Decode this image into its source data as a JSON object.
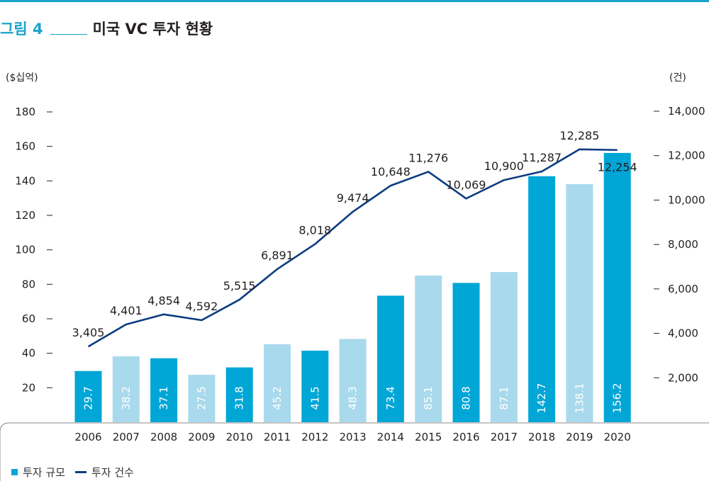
{
  "figure": {
    "label": "그림 4",
    "title": "미국 VC 투자 현황"
  },
  "legend": {
    "bar_label": "투자 규모",
    "line_label": "투자 건수"
  },
  "colors": {
    "accent": "#1aa3cc",
    "bar_dark": "#00a6d6",
    "bar_light": "#a9d9ec",
    "line": "#0a3c80",
    "text": "#231f20"
  },
  "chart_data": {
    "type": "bar",
    "categories": [
      "2006",
      "2007",
      "2008",
      "2009",
      "2010",
      "2011",
      "2012",
      "2013",
      "2014",
      "2015",
      "2016",
      "2017",
      "2018",
      "2019",
      "2020"
    ],
    "series": [
      {
        "name": "투자 규모",
        "type": "bar",
        "axis": "left",
        "values": [
          29.7,
          38.2,
          37.1,
          27.5,
          31.8,
          45.2,
          41.5,
          48.3,
          73.4,
          85.1,
          80.8,
          87.1,
          142.7,
          138.1,
          156.2
        ],
        "labels": [
          "29.7",
          "38.2",
          "37.1",
          "27.5",
          "31.8",
          "45.2",
          "41.5",
          "48.3",
          "73.4",
          "85.1",
          "80.8",
          "87.1",
          "142.7",
          "138.1",
          "156.2"
        ],
        "shade": [
          "dark",
          "light",
          "dark",
          "light",
          "dark",
          "light",
          "dark",
          "light",
          "dark",
          "light",
          "dark",
          "light",
          "dark",
          "light",
          "dark"
        ]
      },
      {
        "name": "투자 건수",
        "type": "line",
        "axis": "right",
        "values": [
          3405,
          4401,
          4854,
          4592,
          5515,
          6891,
          8018,
          9474,
          10648,
          11276,
          10069,
          10900,
          11287,
          12285,
          12254
        ],
        "labels": [
          "3,405",
          "4,401",
          "4,854",
          "4,592",
          "5,515",
          "6,891",
          "8,018",
          "9,474",
          "10,648",
          "11,276",
          "10,069",
          "10,900",
          "11,287",
          "12,285",
          "12,254"
        ]
      }
    ],
    "y_left": {
      "unit_label": "($십억)",
      "ticks": [
        20,
        40,
        60,
        80,
        100,
        120,
        140,
        160,
        180
      ],
      "tick_labels": [
        "20",
        "40",
        "60",
        "80",
        "100",
        "120",
        "140",
        "160",
        "180"
      ],
      "range": [
        0,
        180
      ]
    },
    "y_right": {
      "unit_label": "(건)",
      "ticks": [
        2000,
        4000,
        6000,
        8000,
        10000,
        12000,
        14000
      ],
      "tick_labels": [
        "2,000",
        "4,000",
        "6,000",
        "8,000",
        "10,000",
        "12,000",
        "14,000"
      ],
      "range": [
        0,
        14000
      ]
    },
    "grid": false,
    "legend_position": "bottom-left"
  }
}
